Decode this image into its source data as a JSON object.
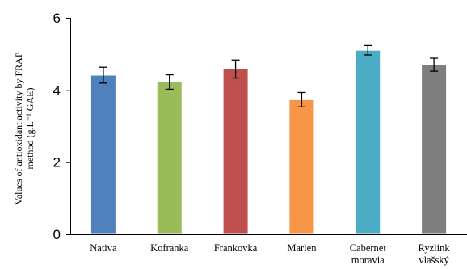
{
  "chart_data": {
    "type": "bar",
    "categories": [
      [
        "Nativa"
      ],
      [
        "Kofranka"
      ],
      [
        "Frankovka"
      ],
      [
        "Marlen"
      ],
      [
        "Cabernet",
        "moravia"
      ],
      [
        "Ryzlink",
        "vlašský"
      ]
    ],
    "values": [
      4.41,
      4.22,
      4.58,
      3.73,
      5.1,
      4.7
    ],
    "errors": [
      0.22,
      0.2,
      0.25,
      0.2,
      0.13,
      0.18
    ],
    "colors": [
      "#4f81bd",
      "#9bbb59",
      "#c0504d",
      "#f79646",
      "#4bacc6",
      "#7f7f7f"
    ],
    "ylabel_lines": [
      "Values of antioxidant activity by FRAP",
      "method (g.L⁻¹ GAE)"
    ],
    "xlabel": "",
    "ylim": [
      0,
      6
    ],
    "yticks": [
      0,
      2,
      4,
      6
    ],
    "grid": false,
    "legend": "none"
  }
}
